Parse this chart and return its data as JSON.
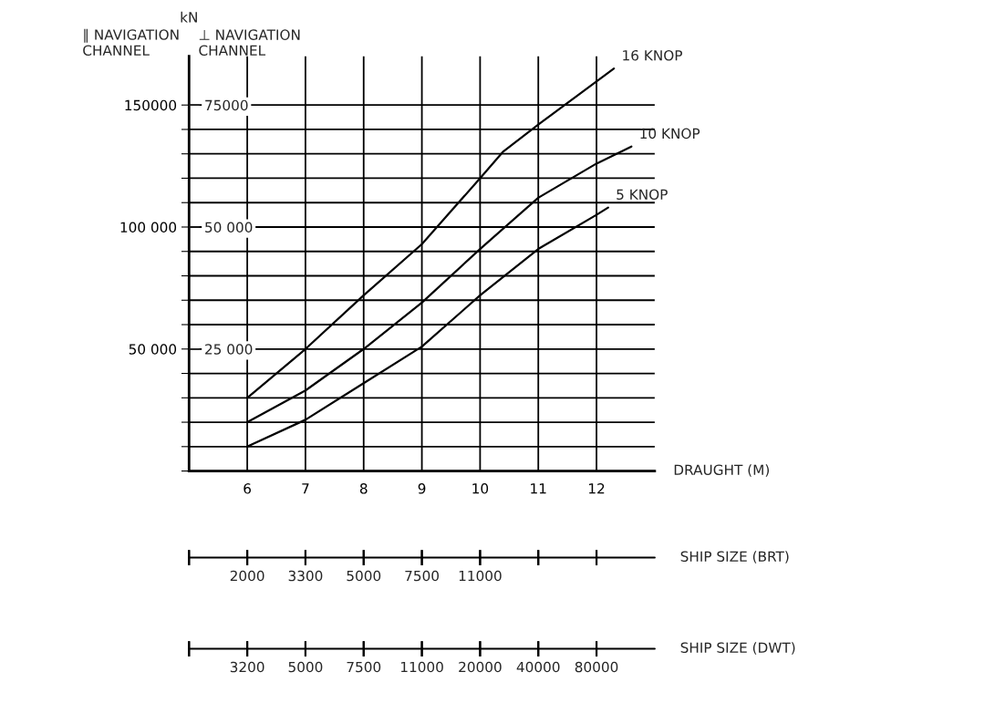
{
  "chart_data": {
    "type": "line",
    "xlabel": "DRAUGHT (M)",
    "ylabel": "∥ NAVIGATION\nCHANNEL",
    "y2label": "⊥ NAVIGATION\nCHANNEL",
    "annotations": [
      "kN",
      "SHIP SIZE (BRT)",
      "2000",
      "3300",
      "5000",
      "7500",
      "11000",
      "SHIP SIZE (DWT)",
      "3200",
      "5000",
      "7500",
      "11000",
      "20000",
      "40000",
      "80000"
    ],
    "series": [
      {
        "name": "16 KNOP",
        "color": "#000000",
        "x": [
          6,
          7,
          8,
          9,
          10,
          10.4,
          11,
          12.3
        ],
        "values": [
          30000,
          50000,
          72000,
          93000,
          120000,
          131000,
          142000,
          165000
        ]
      },
      {
        "name": "10 KNOP",
        "color": "#000000",
        "x": [
          6,
          7,
          8,
          9,
          10,
          11,
          12,
          12.6
        ],
        "values": [
          20000,
          33000,
          50000,
          69000,
          91000,
          112000,
          126000,
          133000
        ]
      },
      {
        "name": "5 KNOP",
        "color": "#000000",
        "x": [
          6,
          7,
          8,
          9,
          10,
          11,
          12,
          12.2
        ],
        "values": [
          10000,
          21000,
          36000,
          51000,
          72000,
          91000,
          105000,
          108000
        ]
      }
    ],
    "xlim": [
      5,
      13
    ],
    "xticks": [
      6,
      7,
      8,
      9,
      10,
      11,
      12
    ],
    "ylim": [
      0,
      170000
    ],
    "yticks": [
      {
        "value": 0,
        "label": null
      },
      {
        "value": 10000,
        "label": null
      },
      {
        "value": 20000,
        "label": null
      },
      {
        "value": 30000,
        "label": null
      },
      {
        "value": 40000,
        "label": null
      },
      {
        "value": 50000,
        "label": "50 000"
      },
      {
        "value": 60000,
        "label": null
      },
      {
        "value": 70000,
        "label": null
      },
      {
        "value": 80000,
        "label": null
      },
      {
        "value": 90000,
        "label": null
      },
      {
        "value": 100000,
        "label": "100 000"
      },
      {
        "value": 110000,
        "label": null
      },
      {
        "value": 120000,
        "label": null
      },
      {
        "value": 130000,
        "label": null
      },
      {
        "value": 140000,
        "label": null
      },
      150000
    ],
    "y2lim": [
      0,
      85000
    ],
    "y2ticks": [
      {
        "value": 25000,
        "label": "25 000"
      },
      {
        "value": 50000,
        "label": "50 000"
      },
      75000
    ],
    "tick_labels": true,
    "grid": true,
    "legend": false
  }
}
